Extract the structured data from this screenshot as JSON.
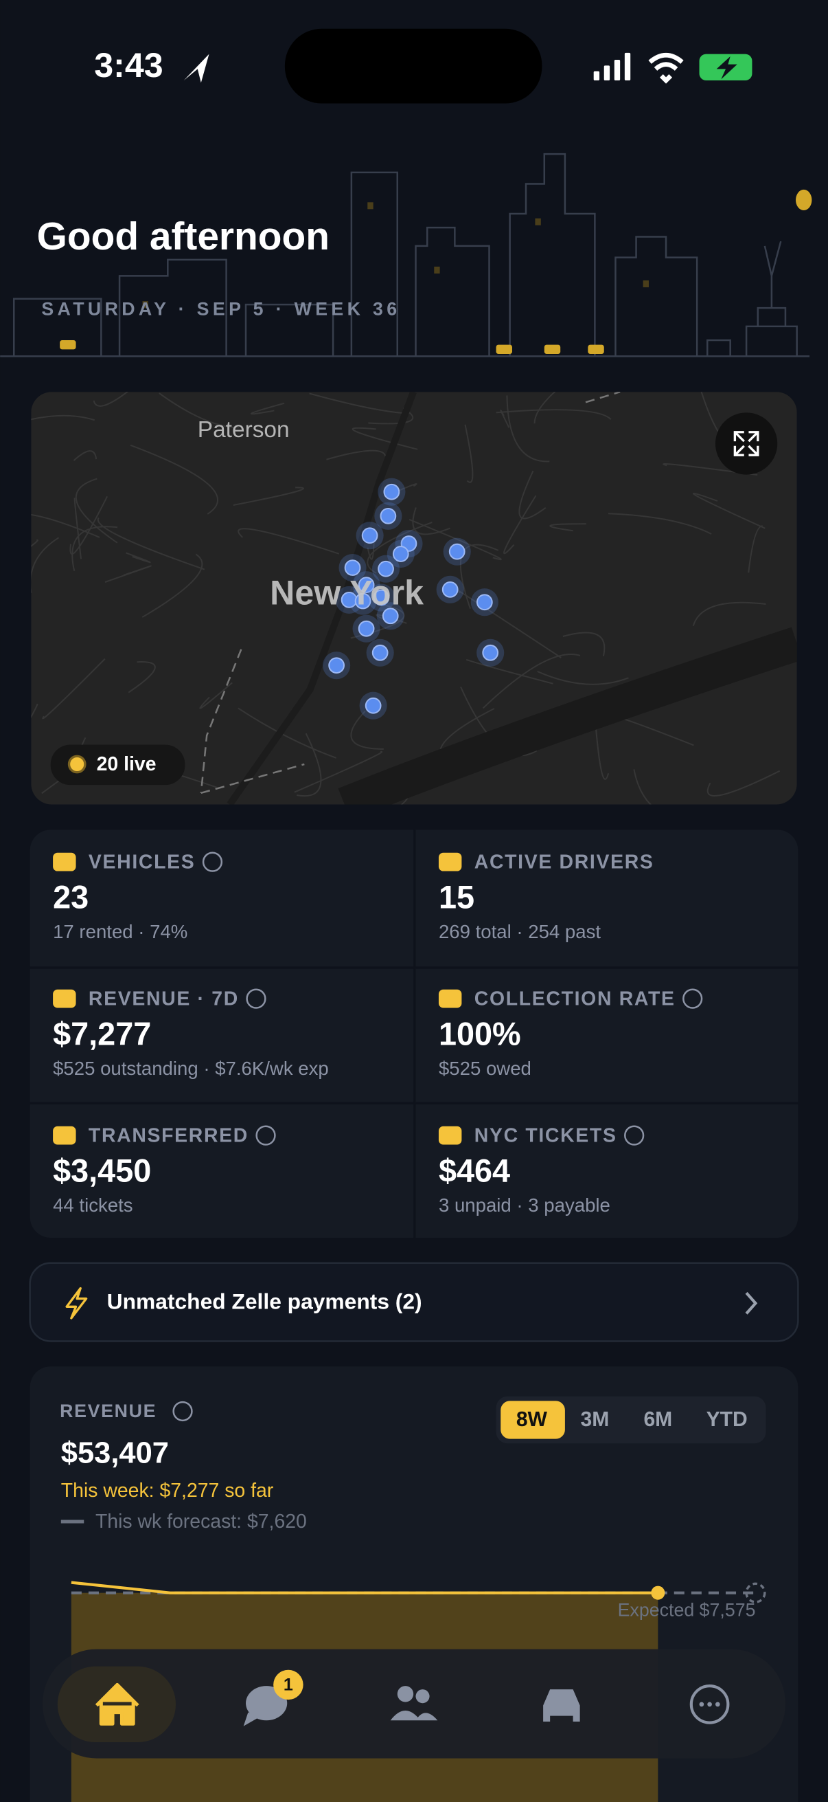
{
  "status_bar": {
    "time": "3:43"
  },
  "header": {
    "greeting": "Good afternoon",
    "date": "SATURDAY · SEP 5 · WEEK 36"
  },
  "map": {
    "labels": [
      "Paterson",
      "New York"
    ],
    "live": "20 live"
  },
  "stats": [
    {
      "label": "VEHICLES",
      "value": "23",
      "sub": "17 rented · 74%"
    },
    {
      "label": "ACTIVE DRIVERS",
      "value": "15",
      "sub": "269 total · 254 past"
    },
    {
      "label": "REVENUE · 7D",
      "value": "$7,277",
      "sub": "$525 outstanding · $7.6K/wk exp"
    },
    {
      "label": "COLLECTION RATE",
      "value": "100%",
      "sub": "$525 owed"
    },
    {
      "label": "TRANSFERRED",
      "value": "$3,450",
      "sub": "44 tickets"
    },
    {
      "label": "NYC TICKETS",
      "value": "$464",
      "sub": "3 unpaid · 3 payable"
    }
  ],
  "alert": {
    "text": "Unmatched Zelle payments (2)"
  },
  "revenue": {
    "title": "REVENUE",
    "total": "$53,407",
    "this_week": "This week: $7,277 so far",
    "forecast": "This wk forecast: $7,620",
    "ranges": [
      "8W",
      "3M",
      "6M",
      "YTD"
    ],
    "expected": "Expected $7,575"
  },
  "nav": {
    "badge": "1"
  }
}
